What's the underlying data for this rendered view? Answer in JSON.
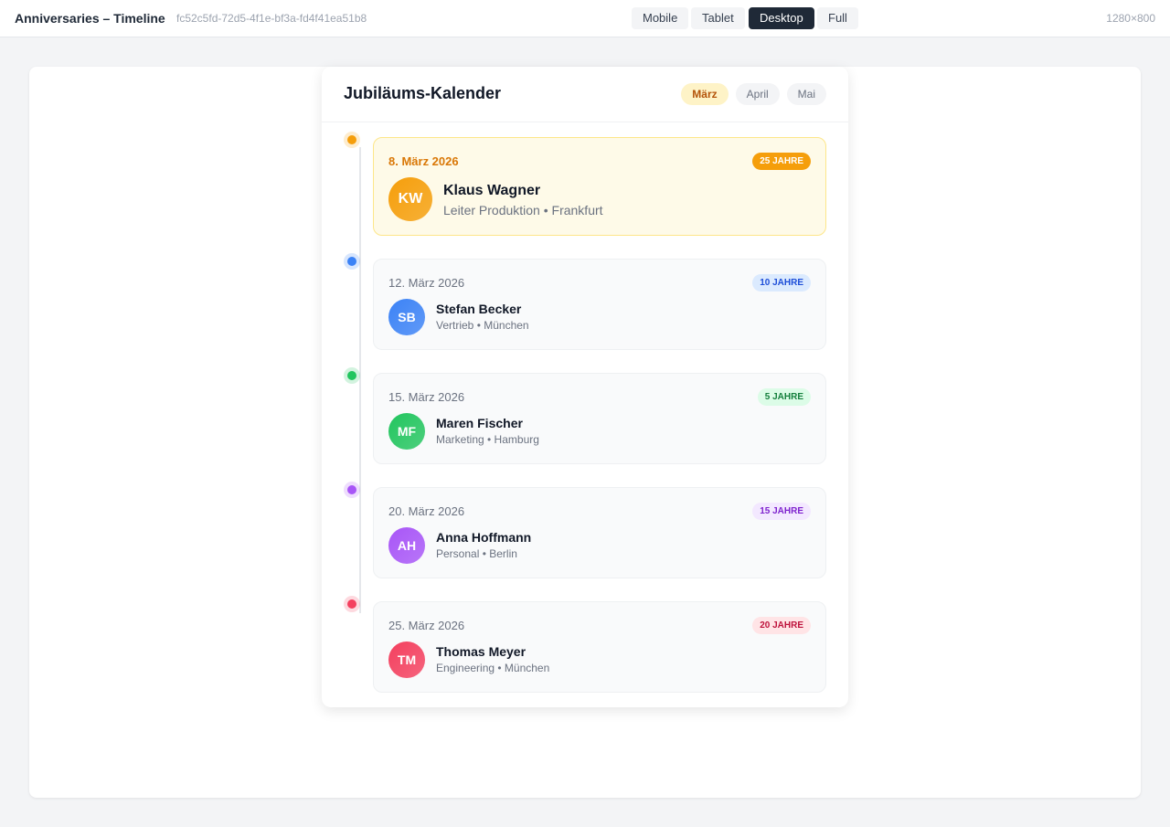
{
  "topbar": {
    "title": "Anniversaries – Timeline",
    "id": "fc52c5fd-72d5-4f1e-bf3a-fd4f41ea51b8",
    "viewports": [
      "Mobile",
      "Tablet",
      "Desktop",
      "Full"
    ],
    "active_viewport": "Desktop",
    "size": "1280×800"
  },
  "calendar": {
    "title": "Jubiläums-Kalender",
    "months": [
      "März",
      "April",
      "Mai"
    ],
    "active_month": "März"
  },
  "items": [
    {
      "date": "8. März 2026",
      "badge": "25 JAHRE",
      "initials": "KW",
      "name": "Klaus Wagner",
      "meta": "Leiter Produktion • Frankfurt",
      "color": "#f59e0b",
      "highlight": true
    },
    {
      "date": "12. März 2026",
      "badge": "10 JAHRE",
      "initials": "SB",
      "name": "Stefan Becker",
      "meta": "Vertrieb • München",
      "color": "#3b82f6"
    },
    {
      "date": "15. März 2026",
      "badge": "5 JAHRE",
      "initials": "MF",
      "name": "Maren Fischer",
      "meta": "Marketing • Hamburg",
      "color": "#22c55e"
    },
    {
      "date": "20. März 2026",
      "badge": "15 JAHRE",
      "initials": "AH",
      "name": "Anna Hoffmann",
      "meta": "Personal • Berlin",
      "color": "#a855f7"
    },
    {
      "date": "25. März 2026",
      "badge": "20 JAHRE",
      "initials": "TM",
      "name": "Thomas Meyer",
      "meta": "Engineering • München",
      "color": "#f43f5e"
    }
  ]
}
